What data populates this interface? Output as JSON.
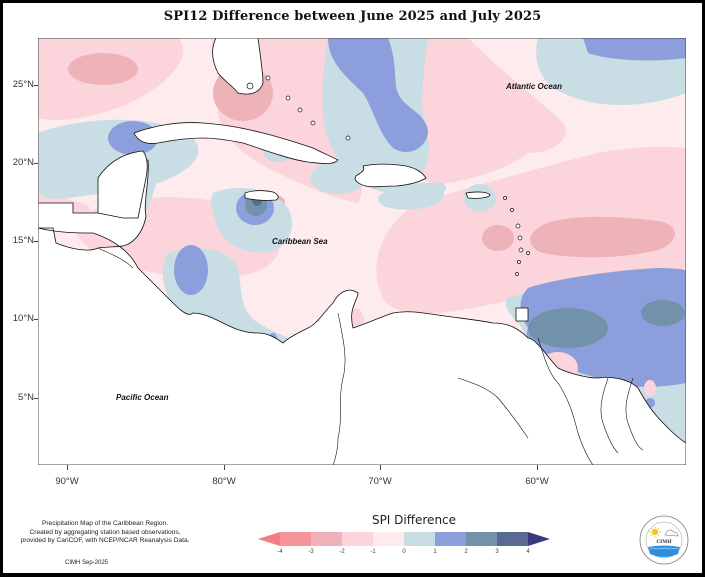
{
  "title": "SPI12 Difference between June 2025 and July 2025",
  "map": {
    "lat_labels": [
      "25°N",
      "20°N",
      "15°N",
      "10°N",
      "5°N"
    ],
    "lon_labels": [
      "90°W",
      "80°W",
      "70°W",
      "60°W"
    ],
    "lat_range": [
      2,
      28
    ],
    "lon_range": [
      92,
      51
    ],
    "ocean_labels": {
      "atlantic": "Atlantic Ocean",
      "caribbean": "Caribbean Sea",
      "pacific": "Pacific Ocean"
    },
    "land_color": "#ffffff",
    "coastline_color": "#111111"
  },
  "legend": {
    "title": "SPI Difference",
    "ticks": [
      "-4",
      "-3",
      "-2",
      "-1",
      "0",
      "1",
      "2",
      "3",
      "4"
    ],
    "bins": [
      {
        "range": "< -4",
        "color": "#f47b82"
      },
      {
        "range": "-4 to -3",
        "color": "#f59499"
      },
      {
        "range": "-3 to -2",
        "color": "#eeb3b8"
      },
      {
        "range": "-2 to -1",
        "color": "#fbd5db"
      },
      {
        "range": "-1 to 0",
        "color": "#fdebed"
      },
      {
        "range": "0 to 1",
        "color": "#c8dde4"
      },
      {
        "range": "1 to 2",
        "color": "#8c9fdc"
      },
      {
        "range": "2 to 3",
        "color": "#7292ac"
      },
      {
        "range": "3 to 4",
        "color": "#5a6a92"
      },
      {
        "range": "> 4",
        "color": "#3a3a7e"
      }
    ]
  },
  "credits": {
    "lines": [
      "Precipitation Map of the Caribbean Region.",
      "Created by aggregating station based observations,",
      "provided by CariCOF, with NCEP/NCAR Reanalysis Data."
    ],
    "date": "CIMH Sep-2025"
  },
  "logo": {
    "label": "CIMH"
  }
}
